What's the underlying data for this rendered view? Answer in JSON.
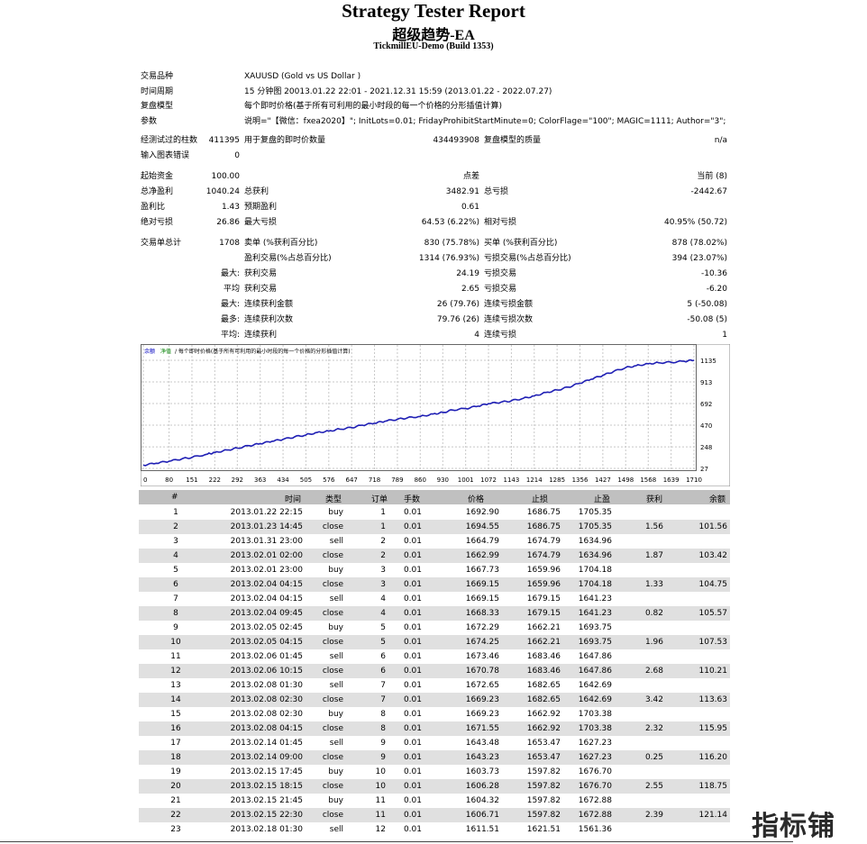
{
  "report": {
    "title": "Strategy Tester Report",
    "ea_name": "超级趋势-EA",
    "server": "TickmillEU-Demo (Build 1353)"
  },
  "info": [
    {
      "label": "交易品种",
      "value": "XAUUSD (Gold vs US Dollar )"
    },
    {
      "label": "时间周期",
      "value": "15 分钟图 20013.01.22 22:01 - 2021.12.31 15:59 (2013.01.22 - 2022.07.27)"
    },
    {
      "label": "复盘模型",
      "value": "每个即时价格(基于所有可利用的最小时段的每一个价格的分形插值计算)"
    },
    {
      "label": "参数",
      "value": "说明=\"【微信：fxea2020】\"; InitLots=0.01; FridayProhibitStartMinute=0; ColorFlage=\"100\"; MAGIC=1111; Author=\"3\";"
    }
  ],
  "bars": {
    "label": "经测试过的柱数",
    "value": "411395",
    "ticks_label": "用于复盘的即时价数量",
    "ticks_value": "434493908",
    "quality_label": "复盘模型的质量",
    "quality_value": "n/a"
  },
  "mismatch": {
    "label": "输入图表错误",
    "value": "0"
  },
  "deposit": {
    "label": "起始资金",
    "value": "100.00",
    "spread_label": "点差",
    "spread_value": "当前 (8)"
  },
  "netprofit": {
    "label": "总净盈利",
    "value": "1040.24",
    "gp_label": "总获利",
    "gp_value": "3482.91",
    "gl_label": "总亏损",
    "gl_value": "-2442.67"
  },
  "pf": {
    "label": "盈利比",
    "value": "1.43",
    "ep_label": "预期盈利",
    "ep_value": "0.61"
  },
  "dd": {
    "label": "绝对亏损",
    "value": "26.86",
    "max_label": "最大亏损",
    "max_value": "64.53 (6.22%)",
    "rel_label": "相对亏损",
    "rel_value": "40.95% (50.72)"
  },
  "trades": {
    "label": "交易单总计",
    "value": "1708",
    "short_label": "卖单 (%获利百分比)",
    "short_value": "830 (75.78%)",
    "long_label": "买单 (%获利百分比)",
    "long_value": "878 (78.02%)"
  },
  "profittrades": {
    "label": "盈利交易(%占总百分比)",
    "value": "1314 (76.93%)",
    "loss_label": "亏损交易(%占总百分比)",
    "loss_value": "394 (23.07%)"
  },
  "largest": {
    "prefix": "最大:",
    "win_label": "获利交易",
    "win_value": "24.19",
    "loss_label": "亏损交易",
    "loss_value": "-10.36"
  },
  "average": {
    "prefix": "平均",
    "win_label": "获利交易",
    "win_value": "2.65",
    "loss_label": "亏损交易",
    "loss_value": "-6.20"
  },
  "maxcons": {
    "prefix": "最大:",
    "win_label": "连续获利金额",
    "win_value": "26 (79.76)",
    "loss_label": "连续亏损金额",
    "loss_value": "5 (-50.08)"
  },
  "maxconsc": {
    "prefix": "最多:",
    "win_label": "连续获利次数",
    "win_value": "79.76 (26)",
    "loss_label": "连续亏损次数",
    "loss_value": "-50.08 (5)"
  },
  "avgcons": {
    "prefix": "平均:",
    "win_label": "连续获利",
    "win_value": "4",
    "loss_label": "连续亏损",
    "loss_value": "1"
  },
  "chart_data": {
    "type": "line",
    "legend_balance": "余额",
    "legend_equity": "净值",
    "legend_text": "/ 每个即时价格(基于所有可利用的最小时段的每一个价格的分形插值计算)",
    "x_ticks": [
      "0",
      "80",
      "151",
      "222",
      "292",
      "363",
      "434",
      "505",
      "576",
      "647",
      "718",
      "789",
      "860",
      "930",
      "1001",
      "1072",
      "1143",
      "1214",
      "1285",
      "1356",
      "1427",
      "1498",
      "1568",
      "1639",
      "1710"
    ],
    "y_ticks": [
      "1135",
      "913",
      "692",
      "470",
      "248",
      "27"
    ],
    "ylim": [
      27,
      1135
    ],
    "xlim": [
      0,
      1710
    ],
    "series": [
      {
        "name": "余额",
        "x": [
          0,
          40,
          80,
          120,
          151,
          200,
          222,
          260,
          292,
          330,
          363,
          400,
          434,
          470,
          505,
          540,
          576,
          610,
          647,
          680,
          718,
          750,
          789,
          820,
          860,
          900,
          930,
          960,
          1001,
          1040,
          1072,
          1110,
          1143,
          1180,
          1214,
          1250,
          1285,
          1320,
          1356,
          1390,
          1427,
          1460,
          1498,
          1530,
          1568,
          1600,
          1639,
          1680,
          1710
        ],
        "y": [
          60,
          80,
          100,
          125,
          140,
          175,
          190,
          215,
          235,
          260,
          280,
          305,
          325,
          350,
          370,
          395,
          410,
          430,
          445,
          470,
          490,
          510,
          530,
          545,
          560,
          585,
          600,
          625,
          640,
          665,
          690,
          705,
          720,
          745,
          770,
          805,
          830,
          860,
          900,
          940,
          980,
          1020,
          1060,
          1080,
          1100,
          1110,
          1115,
          1125,
          1135
        ]
      }
    ]
  },
  "table": {
    "headers": [
      "#",
      "时间",
      "类型",
      "订单",
      "手数",
      "价格",
      "止损",
      "止盈",
      "获利",
      "余额"
    ],
    "rows": [
      [
        "1",
        "2013.01.22 22:15",
        "buy",
        "1",
        "0.01",
        "1692.90",
        "1686.75",
        "1705.35",
        "",
        ""
      ],
      [
        "2",
        "2013.01.23 14:45",
        "close",
        "1",
        "0.01",
        "1694.55",
        "1686.75",
        "1705.35",
        "1.56",
        "101.56"
      ],
      [
        "3",
        "2013.01.31 23:00",
        "sell",
        "2",
        "0.01",
        "1664.79",
        "1674.79",
        "1634.96",
        "",
        ""
      ],
      [
        "4",
        "2013.02.01 02:00",
        "close",
        "2",
        "0.01",
        "1662.99",
        "1674.79",
        "1634.96",
        "1.87",
        "103.42"
      ],
      [
        "5",
        "2013.02.01 23:00",
        "buy",
        "3",
        "0.01",
        "1667.73",
        "1659.96",
        "1704.18",
        "",
        ""
      ],
      [
        "6",
        "2013.02.04 04:15",
        "close",
        "3",
        "0.01",
        "1669.15",
        "1659.96",
        "1704.18",
        "1.33",
        "104.75"
      ],
      [
        "7",
        "2013.02.04 04:15",
        "sell",
        "4",
        "0.01",
        "1669.15",
        "1679.15",
        "1641.23",
        "",
        ""
      ],
      [
        "8",
        "2013.02.04 09:45",
        "close",
        "4",
        "0.01",
        "1668.33",
        "1679.15",
        "1641.23",
        "0.82",
        "105.57"
      ],
      [
        "9",
        "2013.02.05 02:45",
        "buy",
        "5",
        "0.01",
        "1672.29",
        "1662.21",
        "1693.75",
        "",
        ""
      ],
      [
        "10",
        "2013.02.05 04:15",
        "close",
        "5",
        "0.01",
        "1674.25",
        "1662.21",
        "1693.75",
        "1.96",
        "107.53"
      ],
      [
        "11",
        "2013.02.06 01:45",
        "sell",
        "6",
        "0.01",
        "1673.46",
        "1683.46",
        "1647.86",
        "",
        ""
      ],
      [
        "12",
        "2013.02.06 10:15",
        "close",
        "6",
        "0.01",
        "1670.78",
        "1683.46",
        "1647.86",
        "2.68",
        "110.21"
      ],
      [
        "13",
        "2013.02.08 01:30",
        "sell",
        "7",
        "0.01",
        "1672.65",
        "1682.65",
        "1642.69",
        "",
        ""
      ],
      [
        "14",
        "2013.02.08 02:30",
        "close",
        "7",
        "0.01",
        "1669.23",
        "1682.65",
        "1642.69",
        "3.42",
        "113.63"
      ],
      [
        "15",
        "2013.02.08 02:30",
        "buy",
        "8",
        "0.01",
        "1669.23",
        "1662.92",
        "1703.38",
        "",
        ""
      ],
      [
        "16",
        "2013.02.08 04:15",
        "close",
        "8",
        "0.01",
        "1671.55",
        "1662.92",
        "1703.38",
        "2.32",
        "115.95"
      ],
      [
        "17",
        "2013.02.14 01:45",
        "sell",
        "9",
        "0.01",
        "1643.48",
        "1653.47",
        "1627.23",
        "",
        ""
      ],
      [
        "18",
        "2013.02.14 09:00",
        "close",
        "9",
        "0.01",
        "1643.23",
        "1653.47",
        "1627.23",
        "0.25",
        "116.20"
      ],
      [
        "19",
        "2013.02.15 17:45",
        "buy",
        "10",
        "0.01",
        "1603.73",
        "1597.82",
        "1676.70",
        "",
        ""
      ],
      [
        "20",
        "2013.02.15 18:15",
        "close",
        "10",
        "0.01",
        "1606.28",
        "1597.82",
        "1676.70",
        "2.55",
        "118.75"
      ],
      [
        "21",
        "2013.02.15 21:45",
        "buy",
        "11",
        "0.01",
        "1604.32",
        "1597.82",
        "1672.88",
        "",
        ""
      ],
      [
        "22",
        "2013.02.15 22:30",
        "close",
        "11",
        "0.01",
        "1606.71",
        "1597.82",
        "1672.88",
        "2.39",
        "121.14"
      ],
      [
        "23",
        "2013.02.18 01:30",
        "sell",
        "12",
        "0.01",
        "1611.51",
        "1621.51",
        "1561.36",
        "",
        ""
      ]
    ]
  },
  "watermark": "指标铺"
}
